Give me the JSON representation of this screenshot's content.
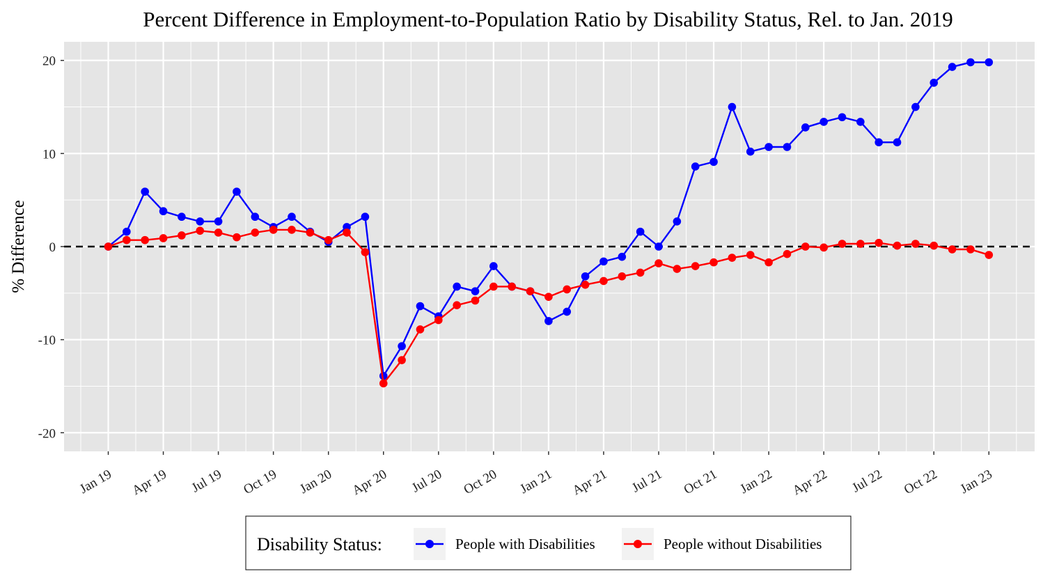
{
  "chart_data": {
    "type": "line",
    "title": "Percent Difference in Employment-to-Population Ratio by Disability Status, Rel. to Jan. 2019",
    "xlabel": "",
    "ylabel": "% Difference",
    "x_ticks": [
      "Jan 19",
      "Apr 19",
      "Jul 19",
      "Oct 19",
      "Jan 20",
      "Apr 20",
      "Jul 20",
      "Oct 20",
      "Jan 21",
      "Apr 21",
      "Jul 21",
      "Oct 21",
      "Jan 22",
      "Apr 22",
      "Jul 22",
      "Oct 22",
      "Jan 23"
    ],
    "y_ticks": [
      20,
      10,
      0,
      -10,
      -20
    ],
    "ylim": [
      -22,
      22
    ],
    "xlim": [
      "Dec 2018",
      "Mar 2023"
    ],
    "reference_line": {
      "y": 0,
      "style": "dashed",
      "color": "#000000"
    },
    "grid": true,
    "panel_background": "#e5e5e5",
    "legend": {
      "title": "Disability Status:",
      "position": "bottom"
    },
    "x": [
      "Jan 2019",
      "Feb 2019",
      "Mar 2019",
      "Apr 2019",
      "May 2019",
      "Jun 2019",
      "Jul 2019",
      "Aug 2019",
      "Sep 2019",
      "Oct 2019",
      "Nov 2019",
      "Dec 2019",
      "Jan 2020",
      "Feb 2020",
      "Mar 2020",
      "Apr 2020",
      "May 2020",
      "Jun 2020",
      "Jul 2020",
      "Aug 2020",
      "Sep 2020",
      "Oct 2020",
      "Nov 2020",
      "Dec 2020",
      "Jan 2021",
      "Feb 2021",
      "Mar 2021",
      "Apr 2021",
      "May 2021",
      "Jun 2021",
      "Jul 2021",
      "Aug 2021",
      "Sep 2021",
      "Oct 2021",
      "Nov 2021",
      "Dec 2021",
      "Jan 2022",
      "Feb 2022",
      "Mar 2022",
      "Apr 2022",
      "May 2022",
      "Jun 2022",
      "Jul 2022",
      "Aug 2022",
      "Sep 2022",
      "Oct 2022",
      "Nov 2022",
      "Dec 2022",
      "Jan 2023"
    ],
    "series": [
      {
        "name": "People with Disabilities",
        "color": "#0000ff",
        "values": [
          0,
          1.6,
          5.9,
          3.8,
          3.2,
          2.7,
          2.7,
          5.9,
          3.2,
          2.1,
          3.2,
          1.6,
          0.5,
          2.1,
          3.2,
          -13.9,
          -10.7,
          -6.4,
          -7.5,
          -4.3,
          -4.8,
          -2.1,
          -4.3,
          -4.8,
          -8.0,
          -7.0,
          -3.2,
          -1.6,
          -1.1,
          1.6,
          0.0,
          2.7,
          8.6,
          9.1,
          15.0,
          10.2,
          10.7,
          10.7,
          12.8,
          13.4,
          13.9,
          13.4,
          11.2,
          11.2,
          15.0,
          17.6,
          19.3,
          19.8,
          19.8
        ]
      },
      {
        "name": "People without Disabilities",
        "color": "#ff0000",
        "values": [
          0,
          0.7,
          0.7,
          0.9,
          1.2,
          1.7,
          1.5,
          1.0,
          1.5,
          1.8,
          1.8,
          1.5,
          0.7,
          1.5,
          -0.6,
          -14.7,
          -12.2,
          -8.9,
          -7.9,
          -6.3,
          -5.8,
          -4.3,
          -4.3,
          -4.8,
          -5.4,
          -4.6,
          -4.1,
          -3.7,
          -3.2,
          -2.8,
          -1.8,
          -2.4,
          -2.1,
          -1.7,
          -1.2,
          -0.9,
          -1.7,
          -0.8,
          0.0,
          -0.1,
          0.3,
          0.3,
          0.4,
          0.1,
          0.3,
          0.1,
          -0.3,
          -0.3,
          -0.9
        ]
      }
    ]
  }
}
